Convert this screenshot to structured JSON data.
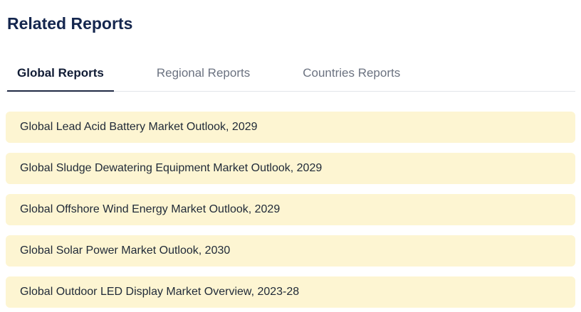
{
  "header": {
    "title": "Related Reports"
  },
  "tabs": [
    {
      "label": "Global Reports",
      "active": true
    },
    {
      "label": "Regional Reports",
      "active": false
    },
    {
      "label": "Countries Reports",
      "active": false
    }
  ],
  "reports": [
    {
      "title": "Global Lead Acid Battery Market Outlook, 2029"
    },
    {
      "title": "Global Sludge Dewatering Equipment Market Outlook, 2029"
    },
    {
      "title": "Global Offshore Wind Energy Market Outlook, 2029"
    },
    {
      "title": "Global Solar Power Market Outlook, 2030"
    },
    {
      "title": "Global Outdoor LED Display Market Overview, 2023-28"
    }
  ],
  "colors": {
    "title_text": "#14264e",
    "active_tab_text": "#111c35",
    "inactive_tab_text": "#6b7280",
    "item_background": "#fdf5d2",
    "item_text": "#1f2937",
    "tab_divider": "#e2e5ea"
  }
}
